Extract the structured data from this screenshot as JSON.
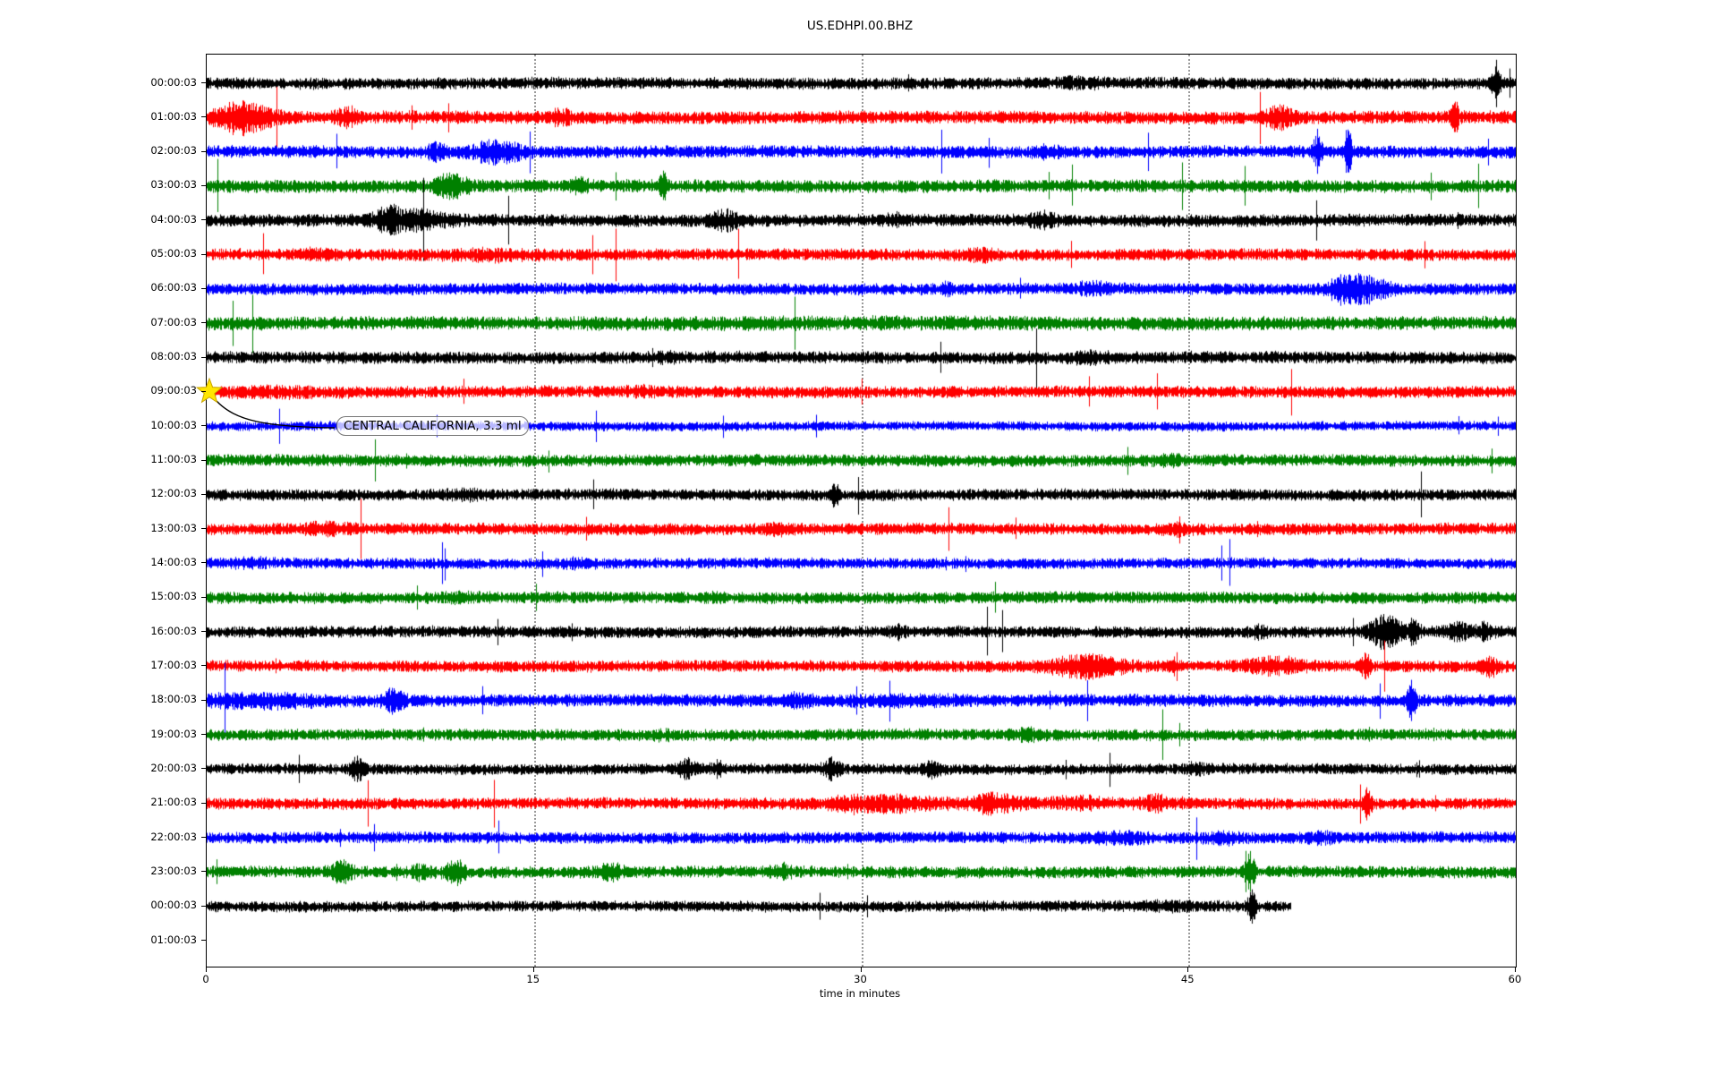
{
  "title": "US.EDHPI.00.BHZ",
  "xlabel": "time in minutes",
  "annotation": {
    "text": "CENTRAL CALIFORNIA, 3.3 ml",
    "attached_row_label": "09:00:03",
    "marker_icon": "star-icon",
    "marker_color": "#ffe600"
  },
  "chart_data": {
    "type": "line",
    "subtype": "seismogram-drumplot",
    "title": "US.EDHPI.00.BHZ",
    "xlabel": "time in minutes",
    "xlim": [
      0,
      60
    ],
    "x_ticks": [
      0,
      15,
      30,
      45,
      60
    ],
    "grid": {
      "vertical_gridlines_at_minutes": [
        15,
        30,
        45
      ],
      "style": "dotted",
      "color": "#9a9a9a"
    },
    "legend": "none",
    "row_interval": "1 hour per trace row, 60 minutes per line",
    "color_cycle": [
      "#000000",
      "#ff0000",
      "#0000ff",
      "#008000"
    ],
    "event_marker": {
      "row_label": "09:00:03",
      "minute": 0.15,
      "shape": "star",
      "color": "#ffe600",
      "label": "CENTRAL CALIFORNIA, 3.3 ml"
    },
    "rows": [
      {
        "label": "00:00:03",
        "color": "#000000",
        "amp": 4.6,
        "end_minute": 60,
        "has_trace": true,
        "events": [
          {
            "m": 59.1,
            "w": 0.12,
            "a": 3.2
          },
          {
            "m": 40.0,
            "w": 0.8,
            "a": 0.35
          }
        ]
      },
      {
        "label": "01:00:03",
        "color": "#ff0000",
        "amp": 5.0,
        "end_minute": 60,
        "has_trace": true,
        "events": [
          {
            "m": 1.6,
            "w": 0.9,
            "a": 1.9
          },
          {
            "m": 6.5,
            "w": 0.4,
            "a": 0.9
          },
          {
            "m": 16.2,
            "w": 0.3,
            "a": 0.8
          },
          {
            "m": 49.1,
            "w": 0.5,
            "a": 1.2
          },
          {
            "m": 57.2,
            "w": 0.1,
            "a": 2.6
          }
        ]
      },
      {
        "label": "02:00:03",
        "color": "#0000ff",
        "amp": 4.8,
        "end_minute": 60,
        "has_trace": true,
        "events": [
          {
            "m": 13.3,
            "w": 0.8,
            "a": 1.4
          },
          {
            "m": 10.5,
            "w": 0.3,
            "a": 0.8
          },
          {
            "m": 50.9,
            "w": 0.12,
            "a": 2.8
          },
          {
            "m": 52.3,
            "w": 0.1,
            "a": 4.2
          },
          {
            "m": 38.5,
            "w": 0.4,
            "a": 0.5
          }
        ]
      },
      {
        "label": "03:00:03",
        "color": "#008000",
        "amp": 5.0,
        "end_minute": 60,
        "has_trace": true,
        "events": [
          {
            "m": 11.2,
            "w": 0.5,
            "a": 1.5
          },
          {
            "m": 20.9,
            "w": 0.12,
            "a": 2.2
          },
          {
            "m": 17.0,
            "w": 0.3,
            "a": 0.6
          }
        ]
      },
      {
        "label": "04:00:03",
        "color": "#000000",
        "amp": 4.8,
        "end_minute": 60,
        "has_trace": true,
        "events": [
          {
            "m": 9.5,
            "w": 1.2,
            "a": 1.1
          },
          {
            "m": 8.3,
            "w": 0.3,
            "a": 1.3
          },
          {
            "m": 23.8,
            "w": 0.45,
            "a": 1.1
          },
          {
            "m": 38.3,
            "w": 0.4,
            "a": 0.8
          },
          {
            "m": 31.5,
            "w": 0.3,
            "a": 0.5
          }
        ]
      },
      {
        "label": "05:00:03",
        "color": "#ff0000",
        "amp": 4.6,
        "end_minute": 60,
        "has_trace": true,
        "events": [
          {
            "m": 13.0,
            "w": 1.5,
            "a": 0.4
          },
          {
            "m": 35.4,
            "w": 0.5,
            "a": 0.5
          },
          {
            "m": 5.0,
            "w": 0.5,
            "a": 0.4
          }
        ]
      },
      {
        "label": "06:00:03",
        "color": "#0000ff",
        "amp": 4.5,
        "end_minute": 60,
        "has_trace": true,
        "events": [
          {
            "m": 52.9,
            "w": 0.8,
            "a": 1.9
          },
          {
            "m": 51.8,
            "w": 0.25,
            "a": 1.2
          },
          {
            "m": 40.6,
            "w": 0.5,
            "a": 0.6
          },
          {
            "m": 33.9,
            "w": 0.3,
            "a": 0.5
          }
        ]
      },
      {
        "label": "07:00:03",
        "color": "#008000",
        "amp": 5.3,
        "end_minute": 60,
        "has_trace": true,
        "events": [
          {
            "m": 30.0,
            "w": 8.0,
            "a": 0.12
          }
        ]
      },
      {
        "label": "08:00:03",
        "color": "#000000",
        "amp": 4.8,
        "end_minute": 60,
        "has_trace": true,
        "events": [
          {
            "m": 40.5,
            "w": 0.6,
            "a": 0.45
          },
          {
            "m": 21.0,
            "w": 0.4,
            "a": 0.3
          }
        ]
      },
      {
        "label": "09:00:03",
        "color": "#ff0000",
        "amp": 4.6,
        "end_minute": 60,
        "has_trace": true,
        "events": [
          {
            "m": 3.0,
            "w": 1.5,
            "a": 0.3
          },
          {
            "m": 20.0,
            "w": 0.5,
            "a": 0.3
          }
        ]
      },
      {
        "label": "10:00:03",
        "color": "#0000ff",
        "amp": 3.6,
        "end_minute": 60,
        "has_trace": true,
        "events": []
      },
      {
        "label": "11:00:03",
        "color": "#008000",
        "amp": 4.6,
        "end_minute": 60,
        "has_trace": true,
        "events": [
          {
            "m": 44.0,
            "w": 0.5,
            "a": 0.4
          }
        ]
      },
      {
        "label": "12:00:03",
        "color": "#000000",
        "amp": 4.5,
        "end_minute": 60,
        "has_trace": true,
        "events": [
          {
            "m": 28.8,
            "w": 0.1,
            "a": 1.8
          },
          {
            "m": 12.0,
            "w": 0.7,
            "a": 0.35
          }
        ]
      },
      {
        "label": "13:00:03",
        "color": "#ff0000",
        "amp": 4.6,
        "end_minute": 60,
        "has_trace": true,
        "events": [
          {
            "m": 5.5,
            "w": 0.7,
            "a": 0.5
          },
          {
            "m": 26.0,
            "w": 0.5,
            "a": 0.4
          },
          {
            "m": 44.6,
            "w": 0.3,
            "a": 0.6
          }
        ]
      },
      {
        "label": "14:00:03",
        "color": "#0000ff",
        "amp": 4.2,
        "end_minute": 60,
        "has_trace": true,
        "events": [
          {
            "m": 2.0,
            "w": 0.7,
            "a": 0.4
          },
          {
            "m": 17.0,
            "w": 0.5,
            "a": 0.35
          }
        ]
      },
      {
        "label": "15:00:03",
        "color": "#008000",
        "amp": 4.6,
        "end_minute": 60,
        "has_trace": true,
        "events": [
          {
            "m": 12.0,
            "w": 0.6,
            "a": 0.35
          },
          {
            "m": 23.0,
            "w": 0.4,
            "a": 0.3
          }
        ]
      },
      {
        "label": "16:00:03",
        "color": "#000000",
        "amp": 4.5,
        "end_minute": 60,
        "has_trace": true,
        "events": [
          {
            "m": 54.0,
            "w": 0.5,
            "a": 2.6
          },
          {
            "m": 55.3,
            "w": 0.2,
            "a": 1.6
          },
          {
            "m": 57.3,
            "w": 0.35,
            "a": 1.2
          },
          {
            "m": 58.6,
            "w": 0.3,
            "a": 1.0
          },
          {
            "m": 48.2,
            "w": 0.3,
            "a": 0.6
          },
          {
            "m": 31.7,
            "w": 0.25,
            "a": 0.7
          }
        ]
      },
      {
        "label": "17:00:03",
        "color": "#ff0000",
        "amp": 4.5,
        "end_minute": 60,
        "has_trace": true,
        "events": [
          {
            "m": 40.3,
            "w": 1.1,
            "a": 1.5
          },
          {
            "m": 49.0,
            "w": 0.9,
            "a": 1.0
          },
          {
            "m": 53.1,
            "w": 0.15,
            "a": 1.8
          },
          {
            "m": 58.8,
            "w": 0.25,
            "a": 1.2
          },
          {
            "m": 44.3,
            "w": 0.3,
            "a": 0.8
          }
        ]
      },
      {
        "label": "18:00:03",
        "color": "#0000ff",
        "amp": 4.8,
        "end_minute": 60,
        "has_trace": true,
        "events": [
          {
            "m": 2.5,
            "w": 2.0,
            "a": 0.6
          },
          {
            "m": 8.6,
            "w": 0.3,
            "a": 1.5
          },
          {
            "m": 55.2,
            "w": 0.12,
            "a": 3.0
          },
          {
            "m": 27.1,
            "w": 0.4,
            "a": 0.7
          },
          {
            "m": 32.0,
            "w": 2.0,
            "a": 0.3
          }
        ]
      },
      {
        "label": "19:00:03",
        "color": "#008000",
        "amp": 4.5,
        "end_minute": 60,
        "has_trace": true,
        "events": [
          {
            "m": 37.6,
            "w": 0.5,
            "a": 0.5
          },
          {
            "m": 21.0,
            "w": 0.4,
            "a": 0.3
          }
        ]
      },
      {
        "label": "20:00:03",
        "color": "#000000",
        "amp": 4.2,
        "end_minute": 60,
        "has_trace": true,
        "events": [
          {
            "m": 6.9,
            "w": 0.2,
            "a": 1.8
          },
          {
            "m": 22.0,
            "w": 0.25,
            "a": 1.3
          },
          {
            "m": 23.4,
            "w": 0.2,
            "a": 1.0
          },
          {
            "m": 28.6,
            "w": 0.25,
            "a": 1.4
          },
          {
            "m": 33.3,
            "w": 0.3,
            "a": 1.0
          },
          {
            "m": 45.4,
            "w": 0.3,
            "a": 0.6
          }
        ]
      },
      {
        "label": "21:00:03",
        "color": "#ff0000",
        "amp": 4.5,
        "end_minute": 60,
        "has_trace": true,
        "events": [
          {
            "m": 29.5,
            "w": 0.6,
            "a": 0.8
          },
          {
            "m": 31.5,
            "w": 0.8,
            "a": 0.7
          },
          {
            "m": 36.0,
            "w": 0.6,
            "a": 0.9
          },
          {
            "m": 40.0,
            "w": 0.5,
            "a": 0.7
          },
          {
            "m": 43.5,
            "w": 0.4,
            "a": 0.8
          },
          {
            "m": 53.2,
            "w": 0.12,
            "a": 2.4
          },
          {
            "m": 35.0,
            "w": 4.0,
            "a": 0.3
          }
        ]
      },
      {
        "label": "22:00:03",
        "color": "#0000ff",
        "amp": 4.5,
        "end_minute": 60,
        "has_trace": true,
        "events": [
          {
            "m": 42.0,
            "w": 1.0,
            "a": 0.4
          },
          {
            "m": 46.5,
            "w": 0.5,
            "a": 0.5
          },
          {
            "m": 51.0,
            "w": 0.5,
            "a": 0.4
          }
        ]
      },
      {
        "label": "23:00:03",
        "color": "#008000",
        "amp": 4.6,
        "end_minute": 60,
        "has_trace": true,
        "events": [
          {
            "m": 6.2,
            "w": 0.35,
            "a": 1.3
          },
          {
            "m": 11.4,
            "w": 0.3,
            "a": 1.6
          },
          {
            "m": 18.5,
            "w": 0.4,
            "a": 0.9
          },
          {
            "m": 26.3,
            "w": 0.4,
            "a": 0.8
          },
          {
            "m": 47.8,
            "w": 0.15,
            "a": 2.6
          },
          {
            "m": 9.8,
            "w": 0.3,
            "a": 0.7
          }
        ]
      },
      {
        "label": "00:00:03",
        "color": "#000000",
        "amp": 4.2,
        "end_minute": 49.7,
        "has_trace": true,
        "events": [
          {
            "m": 47.9,
            "w": 0.12,
            "a": 3.0
          },
          {
            "m": 44.0,
            "w": 1.5,
            "a": 0.3
          }
        ]
      },
      {
        "label": "01:00:03",
        "color": "#000000",
        "amp": 0,
        "end_minute": 0,
        "has_trace": false,
        "events": []
      }
    ]
  }
}
